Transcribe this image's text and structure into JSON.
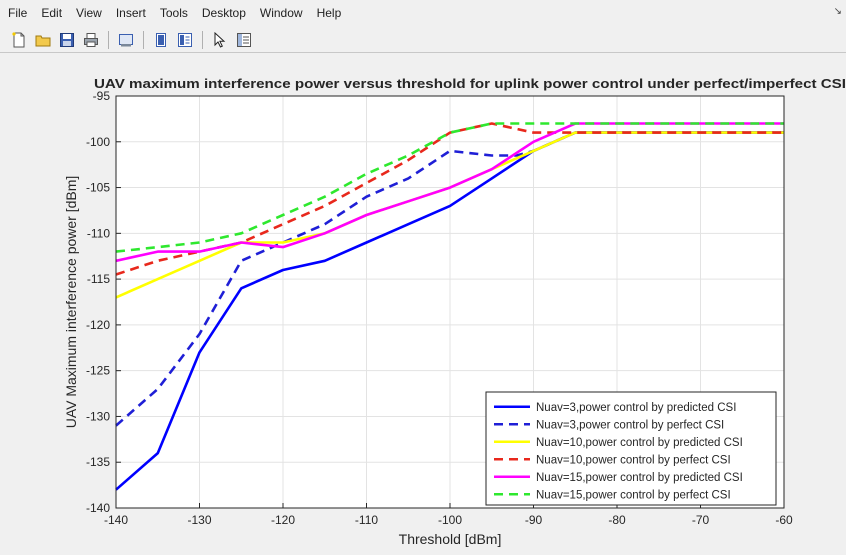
{
  "menubar": {
    "items": [
      "File",
      "Edit",
      "View",
      "Insert",
      "Tools",
      "Desktop",
      "Window",
      "Help"
    ]
  },
  "toolbar": {
    "icons": [
      "new-figure-icon",
      "open-folder-icon",
      "save-icon",
      "print-icon",
      "link-plot-icon",
      "hide-plot-tools-icon",
      "show-plot-tools-icon",
      "edit-plot-arrow-icon",
      "property-inspector-icon"
    ]
  },
  "colors": {
    "blue": "#0000ff",
    "dark_blue": "#1f1fd6",
    "yellow": "#ffff00",
    "red": "#e8281c",
    "magenta": "#ff00ff",
    "green": "#2ee82e"
  },
  "chart_data": {
    "type": "line",
    "title": "UAV maximum interference power versus threshold for uplink power control under perfect/imperfect CSI",
    "xlabel": "Threshold [dBm]",
    "ylabel": "UAV Maximum interference power [dBm]",
    "xlim": [
      -140,
      -60
    ],
    "ylim": [
      -140,
      -95
    ],
    "xticks": [
      -140,
      -130,
      -120,
      -110,
      -100,
      -90,
      -80,
      -70,
      -60
    ],
    "yticks": [
      -140,
      -135,
      -130,
      -125,
      -120,
      -115,
      -110,
      -105,
      -100,
      -95
    ],
    "grid": true,
    "legend_position": "bottom-right",
    "series": [
      {
        "name": "Nuav=3,power control by predicted CSI",
        "color": "#0000ff",
        "style": "solid",
        "x": [
          -140,
          -135,
          -130,
          -125,
          -120,
          -115,
          -110,
          -105,
          -100,
          -95,
          -90,
          -85,
          -80,
          -70,
          -60
        ],
        "y": [
          -138,
          -134,
          -123,
          -116,
          -114,
          -113,
          -111,
          -109,
          -107,
          -104,
          -101,
          -99,
          -99,
          -99,
          -99
        ]
      },
      {
        "name": "Nuav=3,power control by perfect CSI",
        "color": "#1f1fd6",
        "style": "dashed",
        "x": [
          -140,
          -135,
          -130,
          -125,
          -120,
          -115,
          -110,
          -105,
          -100,
          -95,
          -92,
          -90,
          -85,
          -80,
          -70,
          -60
        ],
        "y": [
          -131,
          -127,
          -121,
          -113,
          -111,
          -109,
          -106,
          -104,
          -101,
          -101.5,
          -101.5,
          -101,
          -99,
          -99,
          -99,
          -99
        ]
      },
      {
        "name": "Nuav=10,power control by predicted CSI",
        "color": "#ffff00",
        "style": "solid",
        "x": [
          -140,
          -135,
          -130,
          -125,
          -120,
          -115,
          -110,
          -105,
          -100,
          -95,
          -90,
          -85,
          -80,
          -70,
          -60
        ],
        "y": [
          -117,
          -115,
          -113,
          -111,
          -111,
          -110,
          -108,
          -106.5,
          -105,
          -103,
          -101,
          -99,
          -99,
          -99,
          -99
        ]
      },
      {
        "name": "Nuav=10,power control by perfect CSI",
        "color": "#e8281c",
        "style": "dashed",
        "x": [
          -140,
          -135,
          -130,
          -125,
          -120,
          -115,
          -110,
          -105,
          -100,
          -95,
          -90,
          -85,
          -80,
          -70,
          -60
        ],
        "y": [
          -114.5,
          -113,
          -112,
          -111,
          -109,
          -107,
          -104.5,
          -102,
          -99,
          -98,
          -99,
          -99,
          -99,
          -99,
          -99
        ]
      },
      {
        "name": "Nuav=15,power control by predicted CSI",
        "color": "#ff00ff",
        "style": "solid",
        "x": [
          -140,
          -135,
          -130,
          -125,
          -120,
          -115,
          -110,
          -105,
          -100,
          -95,
          -90,
          -85,
          -80,
          -70,
          -60
        ],
        "y": [
          -113,
          -112,
          -112,
          -111,
          -111.5,
          -110,
          -108,
          -106.5,
          -105,
          -103,
          -100,
          -98,
          -98,
          -98,
          -98
        ]
      },
      {
        "name": "Nuav=15,power control by perfect CSI",
        "color": "#2ee82e",
        "style": "dashed",
        "x": [
          -140,
          -135,
          -130,
          -125,
          -120,
          -115,
          -110,
          -105,
          -100,
          -95,
          -90,
          -85,
          -80,
          -70,
          -60
        ],
        "y": [
          -112,
          -111.5,
          -111,
          -110,
          -108,
          -106,
          -103.5,
          -101.5,
          -99,
          -98,
          -98,
          -98,
          -98,
          -98,
          -98
        ]
      }
    ]
  }
}
